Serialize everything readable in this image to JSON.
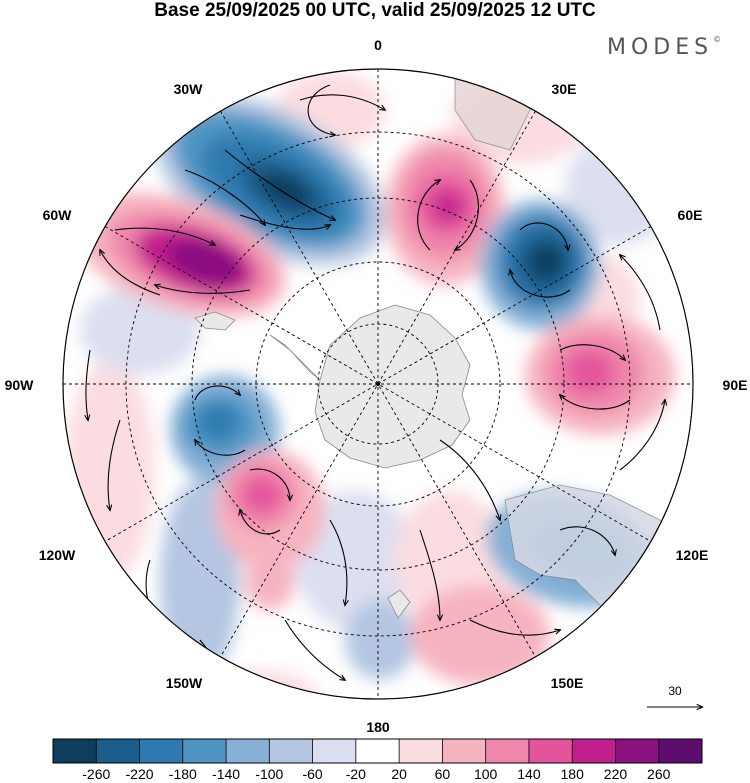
{
  "header": {
    "title": "Base 25/09/2025 00 UTC, valid 25/09/2025 12 UTC",
    "brand": "MODES"
  },
  "map": {
    "projection": "south-polar-stereographic",
    "longitude_labels": {
      "lon_0": "0",
      "lon_30e": "30E",
      "lon_60e": "60E",
      "lon_90e": "90E",
      "lon_120e": "120E",
      "lon_150e": "150E",
      "lon_180": "180",
      "lon_150w": "150W",
      "lon_120w": "120W",
      "lon_90w": "90W",
      "lon_60w": "60W",
      "lon_30w": "30W"
    },
    "reference_vector": "30",
    "anomaly_centers": [
      {
        "name": "low-30w",
        "value": -240
      },
      {
        "name": "high-60w",
        "value": 240
      },
      {
        "name": "high-15e",
        "value": 200
      },
      {
        "name": "low-50e",
        "value": -260
      },
      {
        "name": "high-90e",
        "value": 160
      },
      {
        "name": "low-95w",
        "value": -140
      },
      {
        "name": "high-130w",
        "value": 140
      },
      {
        "name": "low-125e",
        "value": -100
      },
      {
        "name": "high-160e",
        "value": 60
      }
    ]
  },
  "colorbar": {
    "labels": [
      "-260",
      "-220",
      "-180",
      "-140",
      "-100",
      "-60",
      "-20",
      "20",
      "60",
      "100",
      "140",
      "180",
      "220",
      "260"
    ],
    "colors": [
      "#0e3d5e",
      "#1a5f8c",
      "#2e7ab0",
      "#4f95c4",
      "#86b0d6",
      "#b4c6e2",
      "#dcdff0",
      "#ffffff",
      "#fbdde1",
      "#f6b4c0",
      "#ef86ab",
      "#e4549c",
      "#c21f8e",
      "#8a117f",
      "#5c0d6e"
    ]
  },
  "colors": {
    "land": "#e9e9e9",
    "coast": "#888888",
    "grid": "#000000"
  }
}
